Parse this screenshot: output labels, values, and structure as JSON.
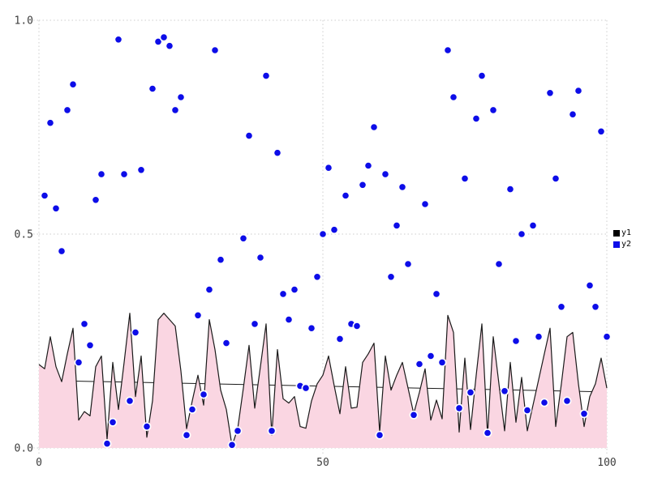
{
  "legend": {
    "items": [
      {
        "label": "y1",
        "color": "#000000"
      },
      {
        "label": "y2",
        "color": "#0d0de8"
      }
    ]
  },
  "colors": {
    "background": "#ffffff",
    "grid": "#cccccc",
    "tick_text": "#3d3d3d",
    "area_fill": "#fad6e2",
    "area_line": "#1a1a1a",
    "marker": "#0d0de8",
    "marker_edge": "#ffffff",
    "trend": "#1a1a1a"
  },
  "chart_data": {
    "type": "scatter",
    "title": "",
    "xlabel": "",
    "ylabel": "",
    "xlim": [
      0,
      100
    ],
    "ylim": [
      0.0,
      1.0
    ],
    "xticks": [
      0,
      50,
      100
    ],
    "xtick_labels": [
      "0",
      "50",
      "100"
    ],
    "yticks": [
      0.0,
      0.5,
      1.0
    ],
    "ytick_labels": [
      "0.0",
      "0.5",
      "1.0"
    ],
    "grid": "dotted, both axes",
    "legend_position": "right-center",
    "series": [
      {
        "name": "y1",
        "kind": "area",
        "line_color": "#1a1a1a",
        "fill_color": "#fad6e2",
        "x": [
          0,
          1,
          2,
          3,
          4,
          5,
          6,
          7,
          8,
          9,
          10,
          11,
          12,
          13,
          14,
          15,
          16,
          17,
          18,
          19,
          20,
          21,
          22,
          23,
          24,
          25,
          26,
          27,
          28,
          29,
          30,
          31,
          32,
          33,
          34,
          35,
          36,
          37,
          38,
          39,
          40,
          41,
          42,
          43,
          44,
          45,
          46,
          47,
          48,
          49,
          50,
          51,
          52,
          53,
          54,
          55,
          56,
          57,
          58,
          59,
          60,
          61,
          62,
          63,
          64,
          65,
          66,
          67,
          68,
          69,
          70,
          71,
          72,
          73,
          74,
          75,
          76,
          77,
          78,
          79,
          80,
          81,
          82,
          83,
          84,
          85,
          86,
          87,
          88,
          89,
          90,
          91,
          92,
          93,
          94,
          95,
          96,
          97,
          98,
          99,
          100
        ],
        "values": [
          0.195,
          0.185,
          0.26,
          0.19,
          0.155,
          0.22,
          0.28,
          0.065,
          0.085,
          0.075,
          0.19,
          0.215,
          0.02,
          0.2,
          0.09,
          0.2,
          0.315,
          0.12,
          0.215,
          0.025,
          0.11,
          0.3,
          0.315,
          0.3,
          0.285,
          0.18,
          0.045,
          0.11,
          0.17,
          0.1,
          0.3,
          0.23,
          0.135,
          0.09,
          0.005,
          0.045,
          0.14,
          0.24,
          0.093,
          0.19,
          0.29,
          0.03,
          0.23,
          0.115,
          0.105,
          0.12,
          0.05,
          0.046,
          0.11,
          0.15,
          0.17,
          0.215,
          0.145,
          0.08,
          0.19,
          0.093,
          0.095,
          0.2,
          0.22,
          0.245,
          0.037,
          0.215,
          0.135,
          0.17,
          0.2,
          0.14,
          0.08,
          0.13,
          0.185,
          0.065,
          0.112,
          0.068,
          0.31,
          0.27,
          0.037,
          0.21,
          0.043,
          0.17,
          0.29,
          0.03,
          0.26,
          0.15,
          0.04,
          0.2,
          0.06,
          0.165,
          0.04,
          0.1,
          0.16,
          0.22,
          0.28,
          0.05,
          0.15,
          0.26,
          0.27,
          0.15,
          0.05,
          0.12,
          0.15,
          0.21,
          0.14
        ]
      },
      {
        "name": "y2",
        "kind": "scatter",
        "marker_color": "#0d0de8",
        "marker_edge_color": "#ffffff",
        "x": [
          1,
          2,
          3,
          4,
          5,
          6,
          7,
          8,
          9,
          10,
          11,
          12,
          13,
          14,
          15,
          16,
          17,
          18,
          19,
          20,
          21,
          22,
          23,
          24,
          25,
          26,
          27,
          28,
          29,
          30,
          31,
          32,
          33,
          34,
          35,
          36,
          37,
          38,
          39,
          40,
          41,
          42,
          43,
          44,
          45,
          46,
          47,
          48,
          49,
          50,
          51,
          52,
          53,
          54,
          55,
          56,
          57,
          58,
          59,
          60,
          61,
          62,
          63,
          64,
          65,
          66,
          67,
          68,
          69,
          70,
          71,
          72,
          73,
          74,
          75,
          76,
          77,
          78,
          79,
          80,
          81,
          82,
          83,
          84,
          85,
          86,
          87,
          88,
          89,
          90,
          91,
          92,
          93,
          94,
          95,
          96,
          97,
          98,
          99,
          100
        ],
        "values": [
          0.59,
          0.76,
          0.56,
          0.46,
          0.79,
          0.85,
          0.2,
          0.29,
          0.24,
          0.58,
          0.64,
          0.01,
          0.06,
          0.955,
          0.64,
          0.11,
          0.27,
          0.65,
          0.05,
          0.84,
          0.95,
          0.96,
          0.94,
          0.79,
          0.82,
          0.03,
          0.09,
          0.31,
          0.125,
          0.37,
          0.93,
          0.44,
          0.245,
          0.007,
          0.04,
          0.49,
          0.73,
          0.29,
          0.445,
          0.87,
          0.04,
          0.69,
          0.36,
          0.3,
          0.37,
          0.145,
          0.14,
          0.28,
          0.4,
          0.5,
          0.655,
          0.51,
          0.255,
          0.59,
          0.29,
          0.285,
          0.615,
          0.66,
          0.75,
          0.03,
          0.64,
          0.4,
          0.52,
          0.61,
          0.43,
          0.077,
          0.196,
          0.57,
          0.215,
          0.36,
          0.2,
          0.93,
          0.82,
          0.093,
          0.63,
          0.13,
          0.77,
          0.87,
          0.035,
          0.79,
          0.43,
          0.133,
          0.605,
          0.25,
          0.5,
          0.088,
          0.52,
          0.26,
          0.106,
          0.83,
          0.63,
          0.33,
          0.11,
          0.78,
          0.835,
          0.08,
          0.38,
          0.33,
          0.74,
          0.26
        ]
      },
      {
        "name": "y1-trendline",
        "kind": "line",
        "in_legend": false,
        "line_color": "#1a1a1a",
        "note": "thin straight line drawn beneath the area fill, visible only in valleys",
        "x": [
          0,
          100
        ],
        "values": [
          0.158,
          0.131
        ]
      }
    ]
  }
}
